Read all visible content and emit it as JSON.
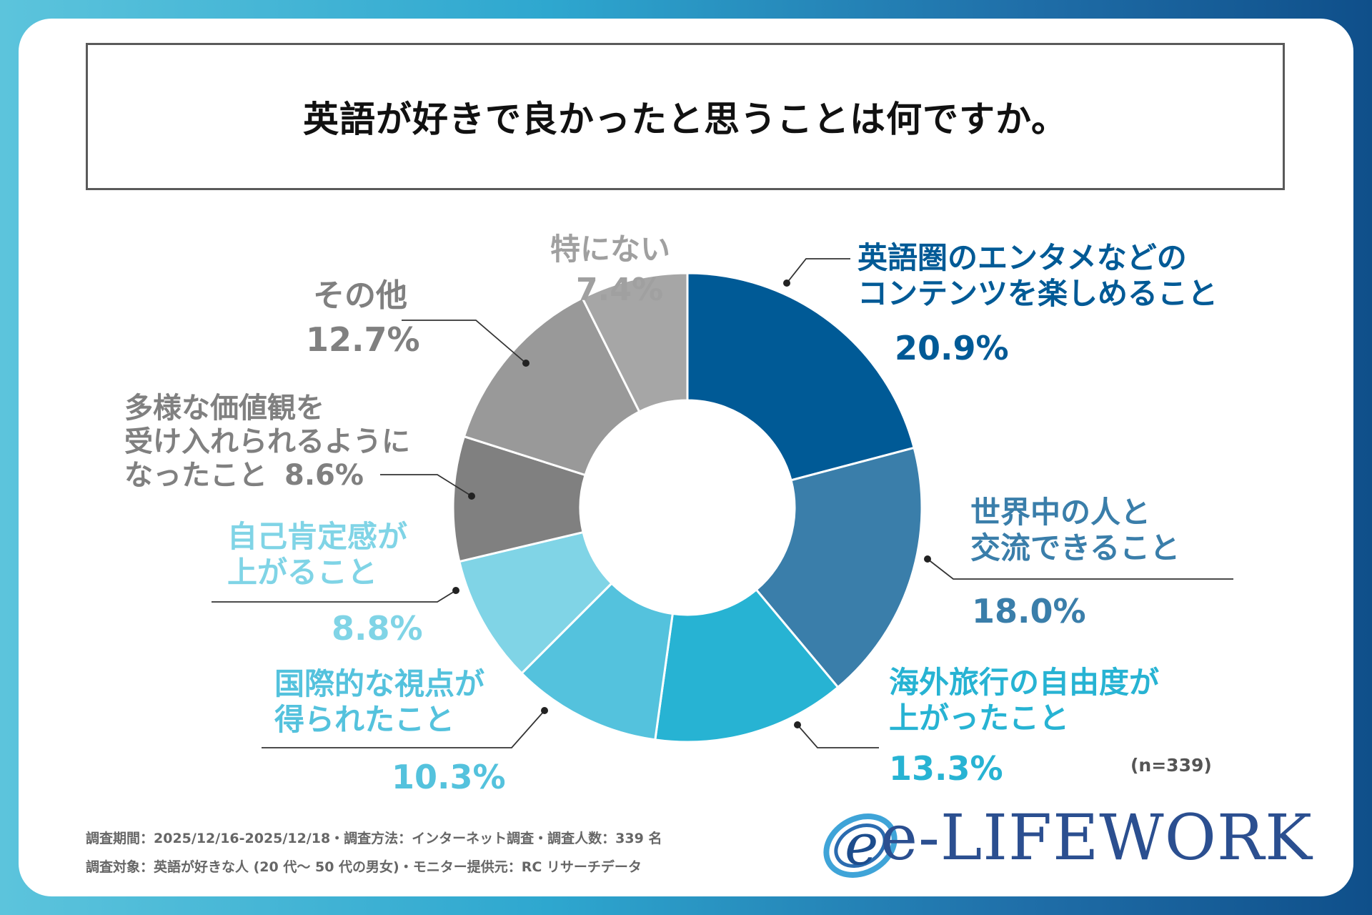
{
  "chart_data": {
    "type": "pie",
    "title": "英語が好きで良かったと思うことは何ですか。",
    "sample_size": "(n=339)",
    "slices": [
      {
        "label_lines": [
          "英語圏のエンタメなどの",
          "コンテンツを楽しめること"
        ],
        "value": 20.9,
        "value_text": "20.9%",
        "color": "#005a96"
      },
      {
        "label_lines": [
          "世界中の人と",
          "交流できること"
        ],
        "value": 18.0,
        "value_text": "18.0%",
        "color": "#3a7eaa"
      },
      {
        "label_lines": [
          "海外旅行の自由度が",
          "上がったこと"
        ],
        "value": 13.3,
        "value_text": "13.3%",
        "color": "#27b3d3"
      },
      {
        "label_lines": [
          "国際的な視点が",
          "得られたこと"
        ],
        "value": 10.3,
        "value_text": "10.3%",
        "color": "#54c2dd"
      },
      {
        "label_lines": [
          "自己肯定感が",
          "上がること"
        ],
        "value": 8.8,
        "value_text": "8.8%",
        "color": "#80d4e6"
      },
      {
        "label_lines": [
          "多様な価値観を",
          "受け入れられるように",
          "なったこと"
        ],
        "value": 8.6,
        "value_text": "8.6%",
        "color": "#808080"
      },
      {
        "label_lines": [
          "その他"
        ],
        "value": 12.7,
        "value_text": "12.7%",
        "color": "#999999"
      },
      {
        "label_lines": [
          "特にない"
        ],
        "value": 7.4,
        "value_text": "7.4%",
        "color": "#a6a6a6"
      }
    ]
  },
  "footer": {
    "line1": "調査期間：2025/12/16-2025/12/18・調査方法：インターネット調査・調査人数：339 名",
    "line2": "調査対象：英語が好きな人 (20 代～ 50 代の男女)・モニター提供元：RC リサーチデータ"
  },
  "logo": {
    "text": "e-LIFEWORK",
    "mark_letter": "e"
  }
}
